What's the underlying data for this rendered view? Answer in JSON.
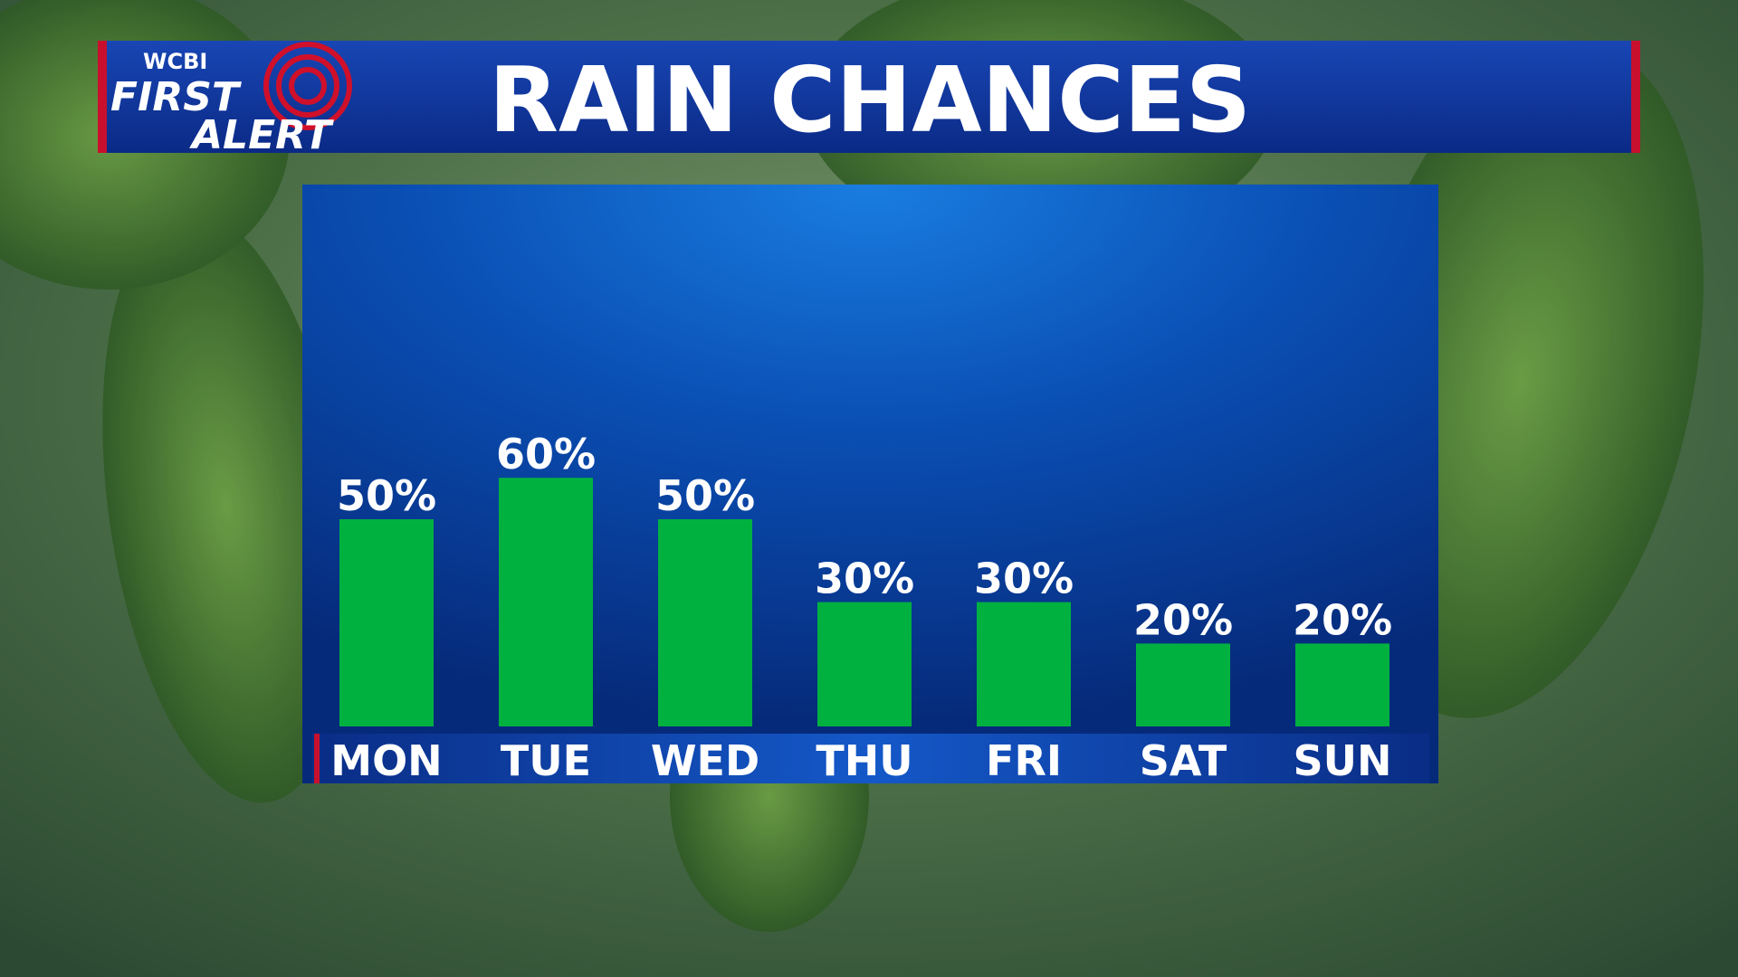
{
  "branding": {
    "station": "WCBI",
    "line1": "FIRST",
    "line2": "ALERT"
  },
  "chart_data": {
    "type": "bar",
    "title": "RAIN CHANCES",
    "categories": [
      "MON",
      "TUE",
      "WED",
      "THU",
      "FRI",
      "SAT",
      "SUN"
    ],
    "values": [
      50,
      60,
      50,
      30,
      30,
      20,
      20
    ],
    "value_labels": [
      "50%",
      "60%",
      "50%",
      "30%",
      "30%",
      "20%",
      "20%"
    ],
    "color": "#00b140"
  }
}
